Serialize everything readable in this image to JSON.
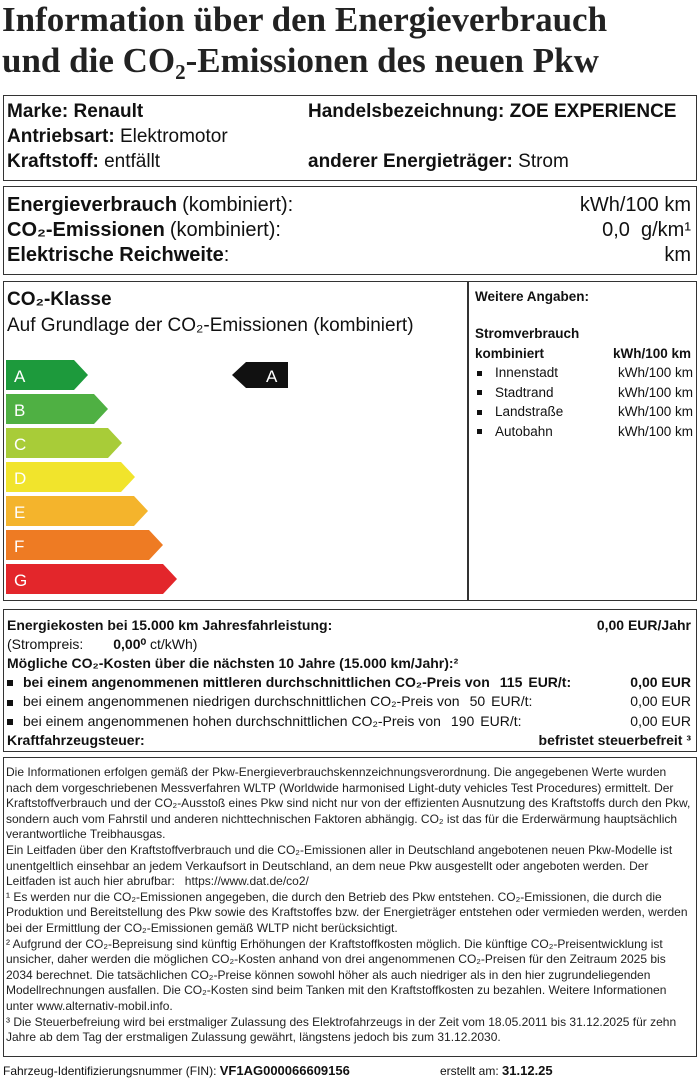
{
  "header": {
    "line1": "Information über den Energieverbrauch",
    "line2": "und die CO₂-Emissionen des neuen Pkw"
  },
  "vehicle": {
    "brand_label": "Marke:",
    "brand": "Renault",
    "trade_label": "Handelsbezeichnung:",
    "trade": "ZOE EXPERIENCE",
    "drive_label": "Antriebsart:",
    "drive": "Elektromotor",
    "fuel_label": "Kraftstoff:",
    "fuel": "entfällt",
    "other_label": "anderer Energieträger:",
    "other": "Strom"
  },
  "consumption": {
    "rows": [
      {
        "label": "Energieverbrauch",
        "qualifier": "(kombiniert):",
        "value": "kWh/100 km"
      },
      {
        "label": "CO₂-Emissionen",
        "qualifier": "(kombiniert):",
        "value": "0,0  g/km¹"
      },
      {
        "label": "Elektrische Reichweite",
        "qualifier": ":",
        "value": "km"
      }
    ]
  },
  "co2_class": {
    "title": "CO₂-Klasse",
    "subtitle": "Auf Grundlage der CO₂-Emissionen (kombiniert)",
    "classes": [
      {
        "letter": "A",
        "color": "#1d9a3c"
      },
      {
        "letter": "B",
        "color": "#4fb043"
      },
      {
        "letter": "C",
        "color": "#a8cc38"
      },
      {
        "letter": "D",
        "color": "#f1e42c"
      },
      {
        "letter": "E",
        "color": "#f4b42c"
      },
      {
        "letter": "F",
        "color": "#ee7b23"
      },
      {
        "letter": "G",
        "color": "#e3262b"
      }
    ],
    "current": "A"
  },
  "further": {
    "title": "Weitere Angaben:",
    "heading1": "Stromverbrauch",
    "heading2": "kombiniert",
    "heading_unit": "kWh/100 km",
    "rows": [
      {
        "label": "Innenstadt",
        "unit": "kWh/100 km"
      },
      {
        "label": "Stadtrand",
        "unit": "kWh/100 km"
      },
      {
        "label": "Landstraße",
        "unit": "kWh/100 km"
      },
      {
        "label": "Autobahn",
        "unit": "kWh/100 km"
      }
    ]
  },
  "costs": {
    "energy_label": "Energiekosten bei 15.000 km Jahresfahrleistung:",
    "energy_value": "0,00 EUR/Jahr",
    "price_label": "(Strompreis:",
    "price_value": "0,00⁰",
    "price_unit": "ct/kWh)",
    "co2_heading": "Mögliche CO₂-Kosten über die nächsten 10 Jahre (15.000 km/Jahr):²",
    "co2_rows": [
      {
        "text": "bei einem angenommenen mittleren durchschnittlichen CO₂-Preis von",
        "price": "115",
        "unit": "EUR/t:",
        "value": "0,00 EUR"
      },
      {
        "text": "bei einem angenommenen niedrigen durchschnittlichen CO₂-Preis von",
        "price": "50",
        "unit": "EUR/t:",
        "value": "0,00 EUR"
      },
      {
        "text": "bei einem angenommenen hohen durchschnittlichen CO₂-Preis von",
        "price": "190",
        "unit": "EUR/t:",
        "value": "0,00 EUR"
      }
    ],
    "tax_label": "Kraftfahrzeugsteuer:",
    "tax_value": "befristet steuerbefreit ³"
  },
  "notes": [
    "Die Informationen erfolgen gemäß der Pkw-Energieverbrauchskennzeichnungsverordnung. Die angegebenen Werte wurden nach dem vorgeschriebenen Messverfahren WLTP (Worldwide harmonised Light-duty vehicles Test Procedures) ermittelt. Der Kraftstoffverbrauch und der CO₂-Ausstoß eines Pkw sind nicht nur von der effizienten Ausnutzung des Kraftstoffs durch den Pkw, sondern auch vom Fahrstil und anderen nichttechnischen Faktoren abhängig. CO₂ ist das für die Erderwärmung hauptsächlich verantwortliche Treibhausgas.",
    "Ein Leitfaden über den Kraftstoffverbrauch und die CO₂-Emissionen aller in Deutschland angebotenen neuen Pkw-Modelle ist unentgeltlich einsehbar an jedem Verkaufsort in Deutschland, an dem neue Pkw ausgestellt oder angeboten werden. Der Leitfaden ist auch hier abrufbar:   https://www.dat.de/co2/",
    "¹ Es werden nur die CO₂-Emissionen angegeben, die durch den Betrieb des Pkw entstehen. CO₂-Emissionen, die durch die Produktion und Bereitstellung des Pkw sowie des Kraftstoffes bzw. der Energieträger entstehen oder vermieden werden, werden bei der Ermittlung der CO₂-Emissionen gemäß WLTP nicht berücksichtigt.",
    "² Aufgrund der CO₂-Bepreisung sind künftig Erhöhungen der Kraftstoffkosten möglich. Die künftige CO₂-Preisentwicklung ist unsicher, daher werden die möglichen CO₂-Kosten anhand von drei angenommenen CO₂-Preisen für den Zeitraum 2025 bis 2034 berechnet. Die tatsächlichen CO₂-Preise können sowohl höher als auch niedriger als in den hier zugrundeliegenden Modellrechnungen ausfallen. Die CO₂-Kosten sind beim Tanken mit den Kraftstoffkosten zu bezahlen. Weitere Informationen unter www.alternativ-mobil.info.",
    "³ Die Steuerbefreiung wird bei erstmaliger Zulassung des Elektrofahrzeugs in der Zeit vom 18.05.2011 bis 31.12.2025 für zehn Jahre ab dem Tag der erstmaligen Zulassung gewährt, längstens jedoch bis zum 31.12.2030."
  ],
  "footer": {
    "fin_label": "Fahrzeug-Identifizierungsnummer (FIN):",
    "fin": "VF1AG000066609156",
    "date_label": "erstellt am:",
    "date": "31.12.25"
  }
}
